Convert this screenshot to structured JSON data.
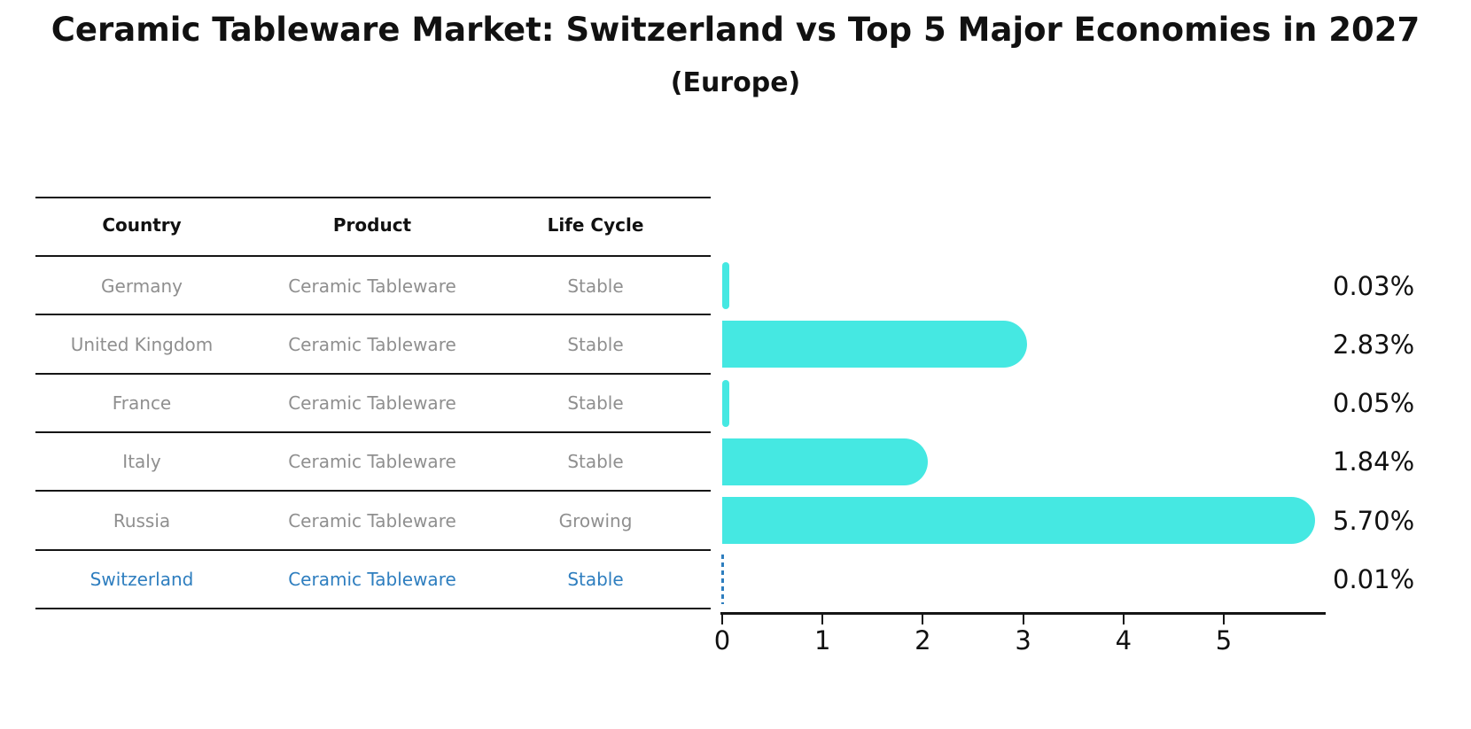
{
  "title": "Ceramic Tableware Market: Switzerland vs Top 5 Major Economies in 2027",
  "subtitle": "(Europe)",
  "table": {
    "headers": {
      "country": "Country",
      "product": "Product",
      "life_cycle": "Life Cycle"
    },
    "rows": [
      {
        "country": "Germany",
        "product": "Ceramic Tableware",
        "life_cycle": "Stable",
        "highlight": false
      },
      {
        "country": "United Kingdom",
        "product": "Ceramic Tableware",
        "life_cycle": "Stable",
        "highlight": false
      },
      {
        "country": "France",
        "product": "Ceramic Tableware",
        "life_cycle": "Stable",
        "highlight": false
      },
      {
        "country": "Italy",
        "product": "Ceramic Tableware",
        "life_cycle": "Stable",
        "highlight": false
      },
      {
        "country": "Russia",
        "product": "Ceramic Tableware",
        "life_cycle": "Growing",
        "highlight": false
      },
      {
        "country": "Switzerland",
        "product": "Ceramic Tableware",
        "life_cycle": "Stable",
        "highlight": true
      }
    ]
  },
  "chart_data": {
    "type": "bar",
    "orientation": "horizontal",
    "title": "Ceramic Tableware Market: Switzerland vs Top 5 Major Economies in 2027",
    "subtitle": "(Europe)",
    "categories": [
      "Germany",
      "United Kingdom",
      "France",
      "Italy",
      "Russia",
      "Switzerland"
    ],
    "values": [
      0.03,
      2.83,
      0.05,
      1.84,
      5.7,
      0.01
    ],
    "value_labels": [
      "0.03%",
      "2.83%",
      "0.05%",
      "1.84%",
      "5.70%",
      "0.01%"
    ],
    "xlabel": "",
    "ylabel": "",
    "xlim": [
      0,
      6
    ],
    "xticks": [
      "0",
      "1",
      "2",
      "3",
      "4",
      "5"
    ],
    "grid": false,
    "legend": false,
    "bar_color": "#45E8E2",
    "highlight_category": "Switzerland",
    "highlight_color": "#2E7EBF",
    "highlight_style": "dashed-zero-line"
  },
  "colors": {
    "background": "#FFFFFF",
    "bar": "#45E8E2",
    "highlight_blue": "#2E7EBF",
    "table_text_gray": "#8F8F8F",
    "text_black": "#111111"
  }
}
